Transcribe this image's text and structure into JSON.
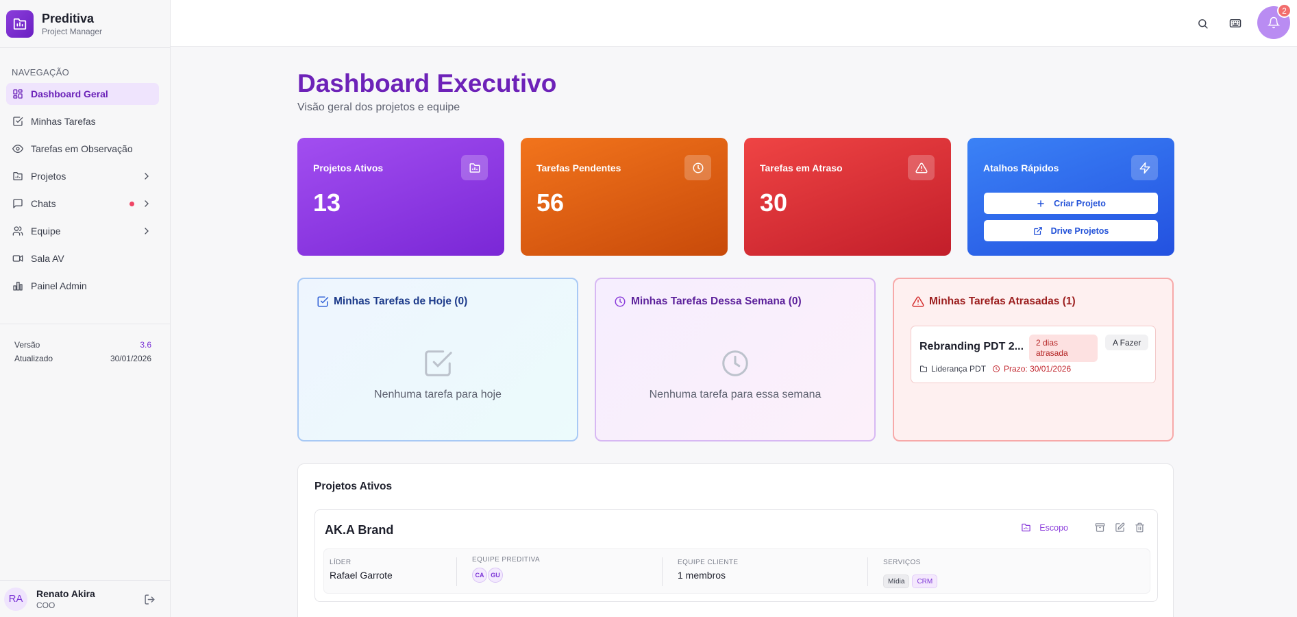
{
  "brand": {
    "title": "Preditiva",
    "subtitle": "Project Manager"
  },
  "sidebar": {
    "section_label": "NAVEGAÇÃO",
    "items": [
      {
        "label": "Dashboard Geral",
        "icon": "layout-grid-icon",
        "active": true
      },
      {
        "label": "Minhas Tarefas",
        "icon": "check-square-icon"
      },
      {
        "label": "Tarefas em Observação",
        "icon": "eye-icon"
      },
      {
        "label": "Projetos",
        "icon": "folder-chart-icon",
        "expandable": true
      },
      {
        "label": "Chats",
        "icon": "chat-icon",
        "expandable": true,
        "unread_dot": true
      },
      {
        "label": "Equipe",
        "icon": "users-icon",
        "expandable": true
      },
      {
        "label": "Sala AV",
        "icon": "video-icon"
      },
      {
        "label": "Painel Admin",
        "icon": "bar-chart-icon"
      }
    ],
    "version_label": "Versão",
    "version_value": "3.6",
    "updated_label": "Atualizado",
    "updated_value": "30/01/2026"
  },
  "user": {
    "initials": "RA",
    "name": "Renato Akira",
    "role": "COO"
  },
  "topbar": {
    "notification_count": "2"
  },
  "page": {
    "title": "Dashboard Executivo",
    "subtitle": "Visão geral dos projetos e equipe"
  },
  "stats": [
    {
      "label": "Projetos Ativos",
      "value": "13",
      "color": "#8b3ddb"
    },
    {
      "label": "Tarefas Pendentes",
      "value": "56",
      "color": "#ea6a14"
    },
    {
      "label": "Tarefas em Atraso",
      "value": "30",
      "color": "#dc3434"
    }
  ],
  "quick": {
    "label": "Atalhos Rápidos",
    "create_project": "Criar Projeto",
    "drive_projects": "Drive Projetos"
  },
  "today": {
    "title": "Minhas Tarefas de Hoje (0)",
    "empty": "Nenhuma tarefa para hoje"
  },
  "week": {
    "title": "Minhas Tarefas Dessa Semana (0)",
    "empty": "Nenhuma tarefa para essa semana"
  },
  "late": {
    "title": "Minhas Tarefas Atrasadas (1)",
    "task": {
      "name": "Rebranding PDT 2...",
      "overdue": "2 dias atrasada",
      "status": "A Fazer",
      "project": "Liderança PDT",
      "due": "Prazo: 30/01/2026"
    }
  },
  "projects": {
    "title": "Projetos Ativos",
    "items": [
      {
        "name": "AK.A Brand",
        "scope_label": "Escopo",
        "leader_label": "LÍDER",
        "leader": "Rafael Garrote",
        "team_label": "EQUIPE PREDITIVA",
        "team": [
          "CA",
          "GU"
        ],
        "client_team_label": "EQUIPE CLIENTE",
        "client_team": "1 membros",
        "services_label": "SERVIÇOS",
        "services": [
          "Mídia",
          "CRM"
        ]
      }
    ]
  }
}
